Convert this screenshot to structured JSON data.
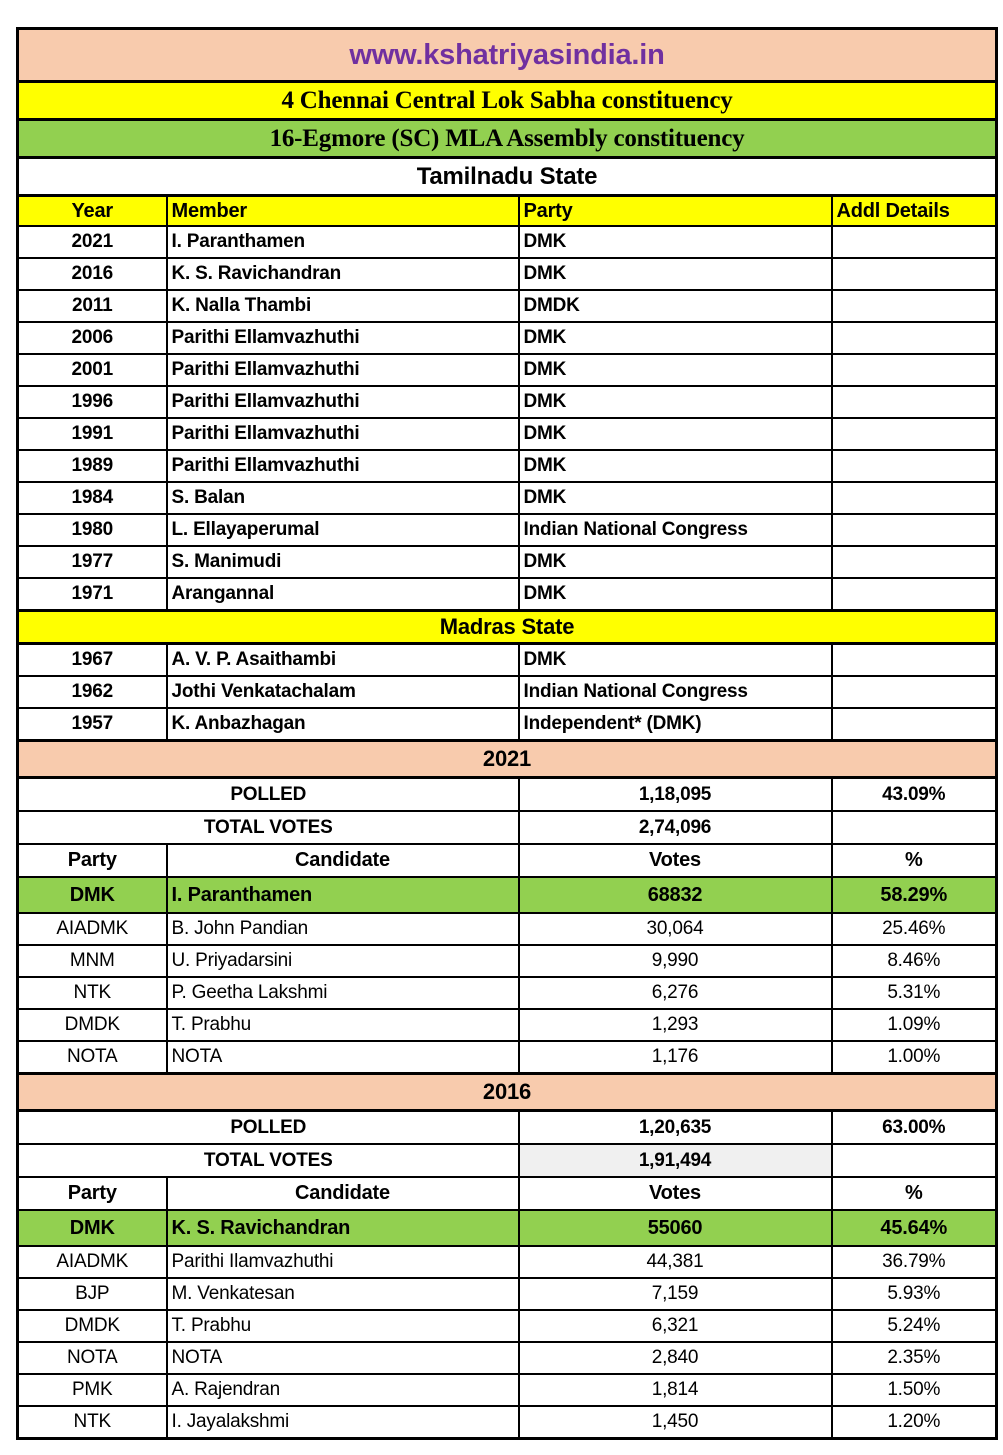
{
  "colors": {
    "banner_bg": "#F8CBAD",
    "banner_text": "#7030A0",
    "yellow": "#FFFF00",
    "green": "#92D050",
    "peach": "#F8CBAD",
    "gray_cell": "#F0F0F0",
    "border": "#000000"
  },
  "banner": {
    "url": "www.kshatriyasindia.in"
  },
  "titles": {
    "lok_sabha": "4 Chennai Central Lok Sabha constituency",
    "assembly": "16-Egmore (SC) MLA Assembly constituency",
    "tamilnadu": "Tamilnadu State",
    "madras": "Madras State"
  },
  "members": {
    "headers": [
      "Year",
      "Member",
      "Party",
      "Addl Details"
    ],
    "tamilnadu_rows": [
      [
        "2021",
        "I. Paranthamen",
        "DMK",
        ""
      ],
      [
        "2016",
        "K. S. Ravichandran",
        "DMK",
        ""
      ],
      [
        "2011",
        "K. Nalla Thambi",
        "DMDK",
        ""
      ],
      [
        "2006",
        "Parithi Ellamvazhuthi",
        "DMK",
        ""
      ],
      [
        "2001",
        "Parithi Ellamvazhuthi",
        "DMK",
        ""
      ],
      [
        "1996",
        "Parithi Ellamvazhuthi",
        "DMK",
        ""
      ],
      [
        "1991",
        "Parithi Ellamvazhuthi",
        "DMK",
        ""
      ],
      [
        "1989",
        "Parithi Ellamvazhuthi",
        "DMK",
        ""
      ],
      [
        "1984",
        "S. Balan",
        "DMK",
        ""
      ],
      [
        "1980",
        "L. Ellayaperumal",
        "Indian National Congress",
        ""
      ],
      [
        "1977",
        "S. Manimudi",
        "DMK",
        ""
      ],
      [
        "1971",
        "Arangannal",
        "DMK",
        ""
      ]
    ],
    "madras_rows": [
      [
        "1967",
        "A. V. P. Asaithambi",
        "DMK",
        ""
      ],
      [
        "1962",
        "Jothi Venkatachalam",
        "Indian National Congress",
        ""
      ],
      [
        "1957",
        "K. Anbazhagan",
        "Independent* (DMK)",
        ""
      ]
    ]
  },
  "elections": [
    {
      "year": "2021",
      "polled_label": "POLLED",
      "polled_votes": "1,18,095",
      "polled_pct": "43.09%",
      "total_label": "TOTAL VOTES",
      "total_votes": "2,74,096",
      "headers": [
        "Party",
        "Candidate",
        "Votes",
        "%"
      ],
      "winner": {
        "party": "DMK",
        "candidate": "I. Paranthamen",
        "votes": "68832",
        "pct": "58.29%"
      },
      "rows": [
        [
          "AIADMK",
          "B. John Pandian",
          "30,064",
          "25.46%"
        ],
        [
          "MNM",
          "U. Priyadarsini",
          "9,990",
          "8.46%"
        ],
        [
          "NTK",
          "P. Geetha Lakshmi",
          "6,276",
          "5.31%"
        ],
        [
          "DMDK",
          "T. Prabhu",
          "1,293",
          "1.09%"
        ],
        [
          "NOTA",
          "NOTA",
          "1,176",
          "1.00%"
        ]
      ]
    },
    {
      "year": "2016",
      "polled_label": "POLLED",
      "polled_votes": "1,20,635",
      "polled_pct": "63.00%",
      "total_label": "TOTAL VOTES",
      "total_votes": "1,91,494",
      "headers": [
        "Party",
        "Candidate",
        "Votes",
        "%"
      ],
      "winner": {
        "party": "DMK",
        "candidate": "K. S. Ravichandran",
        "votes": "55060",
        "pct": "45.64%"
      },
      "rows": [
        [
          "AIADMK",
          "Parithi Ilamvazhuthi",
          "44,381",
          "36.79%"
        ],
        [
          "BJP",
          "M. Venkatesan",
          "7,159",
          "5.93%"
        ],
        [
          "DMDK",
          "T. Prabhu",
          "6,321",
          "5.24%"
        ],
        [
          "NOTA",
          "NOTA",
          "2,840",
          "2.35%"
        ],
        [
          "PMK",
          "A. Rajendran",
          "1,814",
          "1.50%"
        ],
        [
          "NTK",
          "I. Jayalakshmi",
          "1,450",
          "1.20%"
        ]
      ]
    }
  ],
  "chart_data": {
    "type": "table",
    "title": "16-Egmore (SC) MLA Assembly constituency election results",
    "series": [
      {
        "name": "2021",
        "categories": [
          "DMK",
          "AIADMK",
          "MNM",
          "NTK",
          "DMDK",
          "NOTA"
        ],
        "values": [
          68832,
          30064,
          9990,
          6276,
          1293,
          1176
        ],
        "percentages": [
          58.29,
          25.46,
          8.46,
          5.31,
          1.09,
          1.0
        ],
        "polled": 118095,
        "total_votes": 274096,
        "turnout_pct": 43.09
      },
      {
        "name": "2016",
        "categories": [
          "DMK",
          "AIADMK",
          "BJP",
          "DMDK",
          "NOTA",
          "PMK",
          "NTK"
        ],
        "values": [
          55060,
          44381,
          7159,
          6321,
          2840,
          1814,
          1450
        ],
        "percentages": [
          45.64,
          36.79,
          5.93,
          5.24,
          2.35,
          1.5,
          1.2
        ],
        "polled": 120635,
        "total_votes": 191494,
        "turnout_pct": 63.0
      }
    ]
  }
}
